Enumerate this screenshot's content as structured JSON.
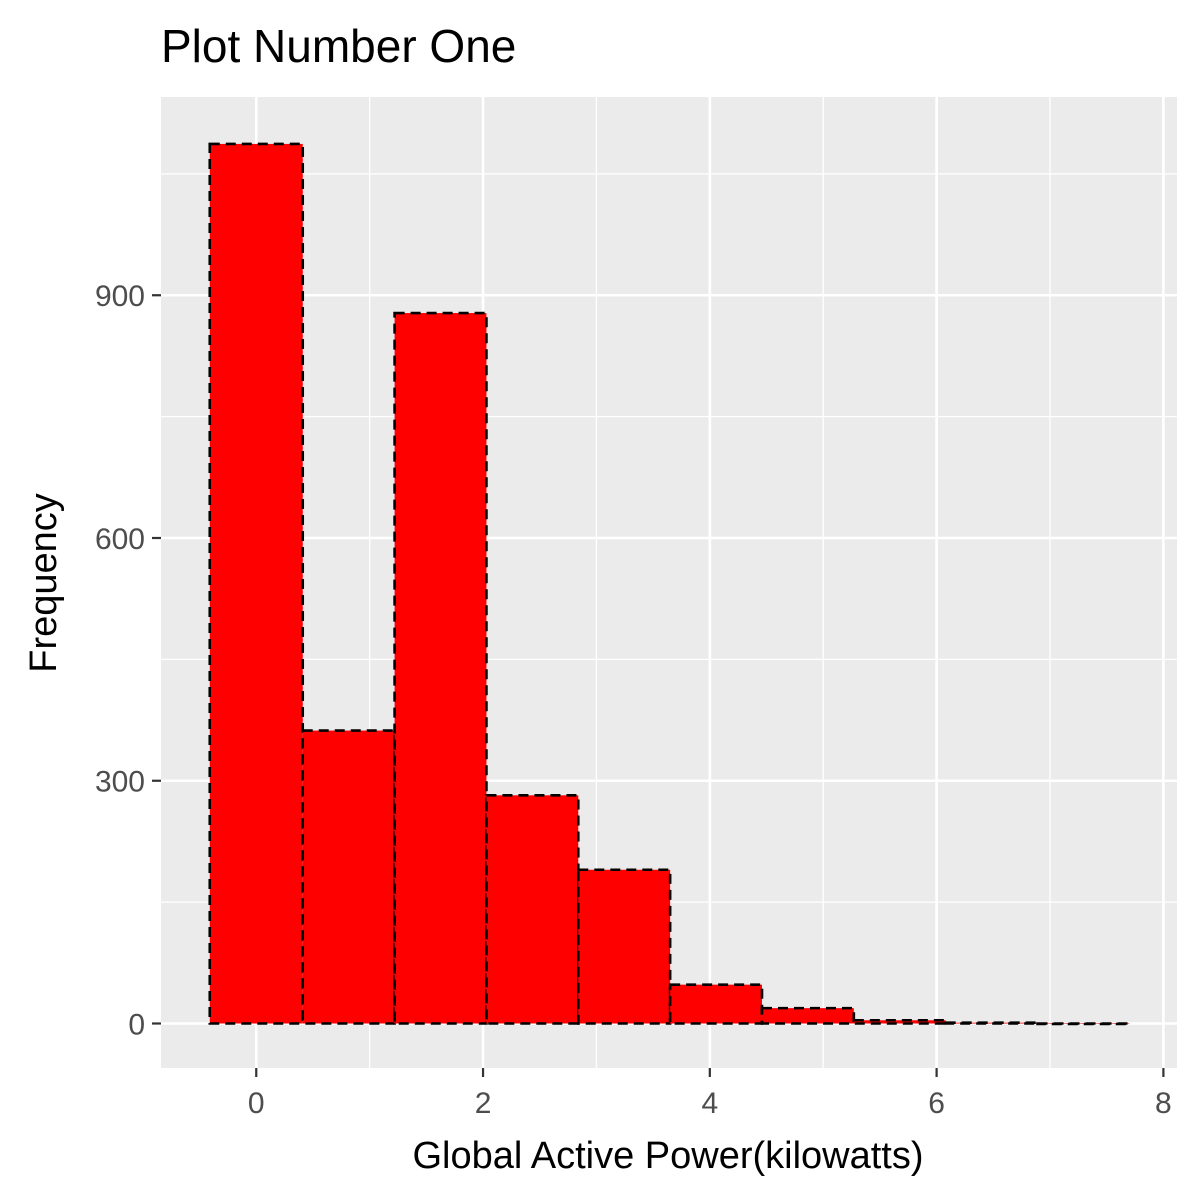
{
  "chart_data": {
    "type": "bar",
    "title": "Plot Number One",
    "xlabel": "Global Active Power(kilowatts)",
    "ylabel": "Frequency",
    "bins": [
      {
        "x0": -0.41,
        "x1": 0.41,
        "count": 1087
      },
      {
        "x0": 0.41,
        "x1": 1.22,
        "count": 362
      },
      {
        "x0": 1.22,
        "x1": 2.03,
        "count": 878
      },
      {
        "x0": 2.03,
        "x1": 2.84,
        "count": 282
      },
      {
        "x0": 2.84,
        "x1": 3.65,
        "count": 190
      },
      {
        "x0": 3.65,
        "x1": 4.46,
        "count": 48
      },
      {
        "x0": 4.46,
        "x1": 5.27,
        "count": 19
      },
      {
        "x0": 5.27,
        "x1": 6.08,
        "count": 4
      },
      {
        "x0": 6.08,
        "x1": 6.89,
        "count": 1
      },
      {
        "x0": 6.89,
        "x1": 7.7,
        "count": 0
      }
    ],
    "xlim": [
      -0.84,
      8.12
    ],
    "ylim": [
      -55,
      1145
    ],
    "x_ticks": [
      0,
      2,
      4,
      6,
      8
    ],
    "y_ticks": [
      0,
      300,
      600,
      900
    ],
    "grid": true,
    "colors": {
      "bar_fill": "#ff0000",
      "bar_outline": "#000000",
      "panel_background": "#ebebeb",
      "grid": "#ffffff"
    }
  }
}
